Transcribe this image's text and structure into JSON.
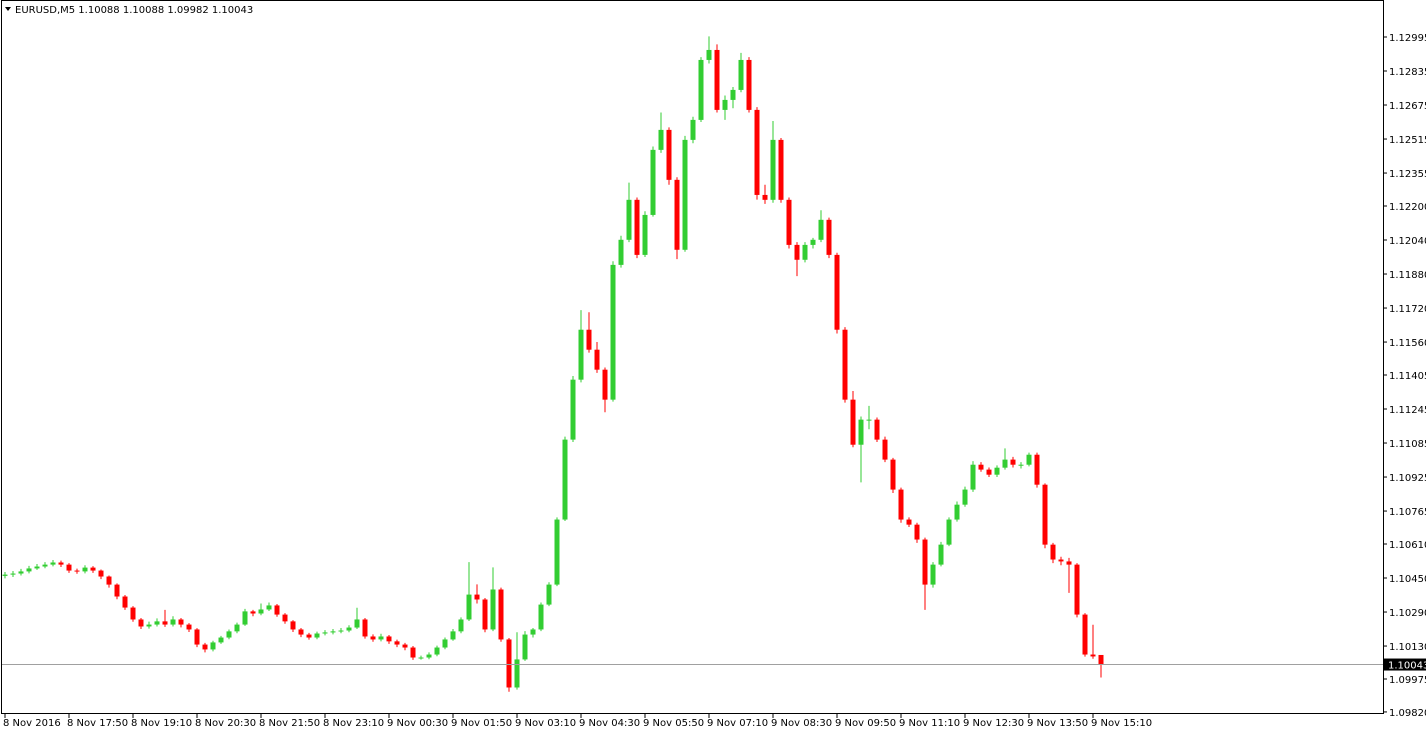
{
  "chart_data": {
    "type": "candlestick",
    "title": "EURUSD,M5  1.10088 1.10088 1.09982 1.10043",
    "up_color": "#32cd32",
    "down_color": "#ff0000",
    "current_price": 1.10043,
    "ylim": [
      1.09815,
      1.13169
    ],
    "yticks": [
      1.12995,
      1.12835,
      1.12675,
      1.12515,
      1.12355,
      {
        "value": 1.122,
        "label": "1.12200"
      },
      {
        "value": 1.1204,
        "label": "1.12040"
      },
      {
        "value": 1.1188,
        "label": "1.11880"
      },
      {
        "value": 1.1172,
        "label": "1.11720"
      },
      {
        "value": 1.1156,
        "label": "1.11560"
      },
      1.11405,
      1.11245,
      1.11085,
      1.10925,
      1.10765,
      {
        "value": 1.1061,
        "label": "1.10610"
      },
      {
        "value": 1.1045,
        "label": "1.10450"
      },
      {
        "value": 1.1029,
        "label": "1.10290"
      },
      {
        "value": 1.1013,
        "label": "1.10130"
      },
      1.09975,
      {
        "value": 1.0982,
        "label": "1.09820"
      }
    ],
    "xticks": [
      {
        "value": 0,
        "label": "8 Nov 2016"
      },
      {
        "value": 8,
        "label": "8 Nov 17:50"
      },
      {
        "value": 16,
        "label": "8 Nov 19:10"
      },
      {
        "value": 24,
        "label": "8 Nov 20:30"
      },
      {
        "value": 32,
        "label": "8 Nov 21:50"
      },
      {
        "value": 40,
        "label": "8 Nov 23:10"
      },
      {
        "value": 48,
        "label": "9 Nov 00:30"
      },
      {
        "value": 56,
        "label": "9 Nov 01:50"
      },
      {
        "value": 64,
        "label": "9 Nov 03:10"
      },
      {
        "value": 72,
        "label": "9 Nov 04:30"
      },
      {
        "value": 80,
        "label": "9 Nov 05:50"
      },
      {
        "value": 88,
        "label": "9 Nov 07:10"
      },
      {
        "value": 96,
        "label": "9 Nov 08:30"
      },
      {
        "value": 104,
        "label": "9 Nov 09:50"
      },
      {
        "value": 112,
        "label": "9 Nov 11:10"
      },
      {
        "value": 120,
        "label": "9 Nov 12:30"
      },
      {
        "value": 128,
        "label": "9 Nov 13:50"
      },
      {
        "value": 136,
        "label": "9 Nov 15:10"
      }
    ],
    "open": [
      1.1046,
      1.10466,
      1.10471,
      1.10481,
      1.10495,
      1.10504,
      1.10513,
      1.10523,
      1.10513,
      1.10485,
      1.10481,
      1.10499,
      1.10485,
      1.10457,
      1.10419,
      1.10363,
      1.10311,
      1.10255,
      1.10222,
      1.10231,
      1.10246,
      1.10231,
      1.10255,
      1.10231,
      1.10208,
      1.10137,
      1.10114,
      1.10147,
      1.1017,
      1.10199,
      1.10231,
      1.10293,
      1.10283,
      1.10302,
      1.10321,
      1.10278,
      1.10246,
      1.10208,
      1.10184,
      1.1017,
      1.10189,
      1.10194,
      1.10199,
      1.10203,
      1.10217,
      1.10255,
      1.10175,
      1.10161,
      1.10175,
      1.10152,
      1.10137,
      1.10123,
      1.10076,
      1.10076,
      1.1009,
      1.10123,
      1.10161,
      1.10199,
      1.10255,
      1.10372,
      1.10349,
      1.10208,
      1.10396,
      1.10161,
      1.09935,
      1.10067,
      1.10184,
      1.10208,
      1.10325,
      1.10419,
      1.10725,
      1.11101,
      1.11383,
      1.11618,
      1.11524,
      1.1143,
      1.11289,
      1.11923,
      1.12041,
      1.12229,
      1.1197,
      1.12158,
      1.12464,
      1.12558,
      1.12323,
      1.11994,
      1.12511,
      1.12605,
      1.12887,
      1.12934,
      1.12652,
      1.12699,
      1.12746,
      1.12887,
      1.12652,
      1.12252,
      1.12229,
      1.12511,
      1.12229,
      1.12017,
      1.11947,
      1.12017,
      1.12041,
      1.12135,
      1.1197,
      1.11618,
      1.11289,
      1.11077,
      1.11195,
      1.11195,
      1.11101,
      1.11007,
      1.10866,
      1.10725,
      1.10701,
      1.10631,
      1.10419,
      1.10513,
      1.10607,
      1.10725,
      1.10795,
      1.10866,
      1.10983,
      1.1096,
      1.10936,
      1.10969,
      1.11007,
      1.10983,
      1.10983,
      1.1103,
      1.10889,
      1.10607,
      1.10537,
      1.10528,
      1.10513,
      1.10278,
      1.1009,
      1.10088
    ],
    "high": [
      1.10478,
      1.10483,
      1.10493,
      1.10507,
      1.10516,
      1.10525,
      1.10535,
      1.10532,
      1.1052,
      1.10494,
      1.1051,
      1.10506,
      1.1049,
      1.10462,
      1.10425,
      1.1037,
      1.10318,
      1.10262,
      1.10245,
      1.1026,
      1.103,
      1.1027,
      1.10262,
      1.10238,
      1.10214,
      1.10145,
      1.10155,
      1.10178,
      1.10208,
      1.1024,
      1.10305,
      1.103,
      1.1033,
      1.10335,
      1.10328,
      1.10285,
      1.10252,
      1.10215,
      1.10192,
      1.10198,
      1.10205,
      1.1021,
      1.10215,
      1.10228,
      1.1031,
      1.10262,
      1.10185,
      1.10188,
      1.10182,
      1.1016,
      1.10145,
      1.1013,
      1.10085,
      1.101,
      1.10132,
      1.1017,
      1.1021,
      1.10265,
      1.10525,
      1.1042,
      1.10356,
      1.105,
      1.10405,
      1.10168,
      1.10195,
      1.102,
      1.10215,
      1.10335,
      1.1043,
      1.10735,
      1.11115,
      1.114,
      1.1171,
      1.117,
      1.1156,
      1.1144,
      1.1194,
      1.1206,
      1.1231,
      1.1224,
      1.12175,
      1.1248,
      1.1264,
      1.1257,
      1.12335,
      1.1253,
      1.1262,
      1.129,
      1.12998,
      1.1296,
      1.1272,
      1.1276,
      1.1292,
      1.129,
      1.12665,
      1.123,
      1.126,
      1.1252,
      1.1224,
      1.1203,
      1.1203,
      1.1205,
      1.1218,
      1.12145,
      1.1198,
      1.1163,
      1.1133,
      1.1121,
      1.1126,
      1.11205,
      1.11115,
      1.11015,
      1.10875,
      1.10735,
      1.1071,
      1.1064,
      1.10525,
      1.1062,
      1.10735,
      1.1081,
      1.1088,
      1.11,
      1.10995,
      1.1097,
      1.1098,
      1.1106,
      1.1102,
      1.10995,
      1.1104,
      1.1104,
      1.10895,
      1.10615,
      1.1055,
      1.10545,
      1.1052,
      1.10285,
      1.1023,
      1.10088
    ],
    "low": [
      1.10448,
      1.10455,
      1.10462,
      1.10472,
      1.10488,
      1.10496,
      1.10505,
      1.10502,
      1.10474,
      1.1047,
      1.10472,
      1.10474,
      1.10445,
      1.10405,
      1.1035,
      1.103,
      1.10244,
      1.1021,
      1.10212,
      1.10222,
      1.1022,
      1.10222,
      1.10218,
      1.10196,
      1.10125,
      1.101,
      1.10105,
      1.1014,
      1.10162,
      1.1019,
      1.10225,
      1.1027,
      1.10275,
      1.10295,
      1.10268,
      1.10235,
      1.10196,
      1.10172,
      1.1016,
      1.10162,
      1.1018,
      1.10185,
      1.1019,
      1.10195,
      1.1021,
      1.10165,
      1.1015,
      1.10152,
      1.1014,
      1.10125,
      1.1011,
      1.10065,
      1.10066,
      1.10068,
      1.10082,
      1.10115,
      1.10155,
      1.1019,
      1.10248,
      1.1033,
      1.10195,
      1.102,
      1.1015,
      1.09915,
      1.09925,
      1.1006,
      1.1017,
      1.102,
      1.10318,
      1.10412,
      1.10718,
      1.1109,
      1.1137,
      1.1151,
      1.11415,
      1.1123,
      1.1128,
      1.1191,
      1.1203,
      1.11955,
      1.1196,
      1.1215,
      1.1245,
      1.123,
      1.1195,
      1.11985,
      1.12495,
      1.12595,
      1.1287,
      1.1264,
      1.12605,
      1.1266,
      1.12735,
      1.1264,
      1.1223,
      1.1221,
      1.12215,
      1.12215,
      1.12,
      1.1187,
      1.11935,
      1.12,
      1.1203,
      1.11955,
      1.116,
      1.11275,
      1.11065,
      1.109,
      1.1115,
      1.1109,
      1.10995,
      1.1085,
      1.1071,
      1.1069,
      1.10615,
      1.103,
      1.10405,
      1.10505,
      1.106,
      1.10715,
      1.10785,
      1.10855,
      1.1095,
      1.10925,
      1.10925,
      1.1096,
      1.1097,
      1.10965,
      1.10975,
      1.10875,
      1.1059,
      1.1052,
      1.1051,
      1.1038,
      1.10265,
      1.1008,
      1.1007,
      1.09982
    ],
    "close": [
      1.10466,
      1.10471,
      1.10481,
      1.10495,
      1.10504,
      1.10513,
      1.10523,
      1.10513,
      1.10485,
      1.10481,
      1.10499,
      1.10485,
      1.10457,
      1.10419,
      1.10363,
      1.10311,
      1.10255,
      1.10222,
      1.10231,
      1.10246,
      1.10231,
      1.10255,
      1.10231,
      1.10208,
      1.10137,
      1.10114,
      1.10147,
      1.1017,
      1.10199,
      1.10231,
      1.10293,
      1.10283,
      1.10302,
      1.10321,
      1.10278,
      1.10246,
      1.10208,
      1.10184,
      1.1017,
      1.10189,
      1.10194,
      1.10199,
      1.10203,
      1.10217,
      1.10255,
      1.10175,
      1.10161,
      1.10175,
      1.10152,
      1.10137,
      1.10123,
      1.10076,
      1.10076,
      1.1009,
      1.10123,
      1.10161,
      1.10199,
      1.10255,
      1.10372,
      1.10349,
      1.10208,
      1.10396,
      1.10161,
      1.09935,
      1.10067,
      1.10184,
      1.10208,
      1.10325,
      1.10419,
      1.10725,
      1.11101,
      1.11383,
      1.11618,
      1.11524,
      1.1143,
      1.11289,
      1.11923,
      1.12041,
      1.12229,
      1.1197,
      1.12158,
      1.12464,
      1.12558,
      1.12323,
      1.11994,
      1.12511,
      1.12605,
      1.12887,
      1.12934,
      1.12652,
      1.12699,
      1.12746,
      1.12887,
      1.12652,
      1.12252,
      1.12229,
      1.12511,
      1.12229,
      1.12017,
      1.11947,
      1.12017,
      1.12041,
      1.12135,
      1.1197,
      1.11618,
      1.11289,
      1.11077,
      1.11195,
      1.11195,
      1.11101,
      1.11007,
      1.10866,
      1.10725,
      1.10701,
      1.10631,
      1.10419,
      1.10513,
      1.10607,
      1.10725,
      1.10795,
      1.10866,
      1.10983,
      1.1096,
      1.10936,
      1.10969,
      1.11007,
      1.10983,
      1.10983,
      1.1103,
      1.10889,
      1.10607,
      1.10537,
      1.10528,
      1.10513,
      1.10278,
      1.1009,
      1.10081,
      1.10043
    ]
  }
}
